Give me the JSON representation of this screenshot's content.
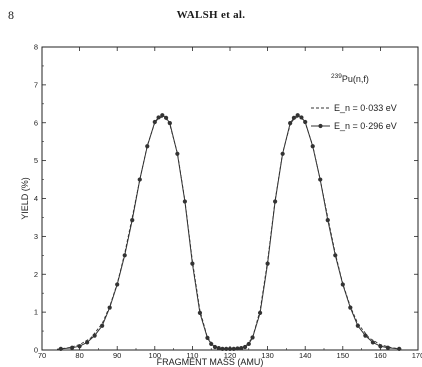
{
  "page": {
    "number": "8",
    "running_head": "WALSH et al."
  },
  "chart_data": {
    "type": "line",
    "title": "",
    "annotation": {
      "prefix": "239",
      "label": "Pu(n,f)"
    },
    "xlabel": "FRAGMENT MASS (AMU)",
    "ylabel": "YIELD (%)",
    "xlim": [
      70,
      170
    ],
    "ylim": [
      0,
      8
    ],
    "xticks": [
      70,
      80,
      90,
      100,
      110,
      120,
      130,
      140,
      150,
      160,
      170
    ],
    "yticks": [
      0,
      1,
      2,
      3,
      4,
      5,
      6,
      7,
      8
    ],
    "grid": false,
    "legend_position": "top-right",
    "series": [
      {
        "name": "E_n = 0·033 eV",
        "style": "dashed",
        "color": "#333333",
        "x": [
          74,
          77,
          80,
          83,
          86,
          88,
          90,
          92,
          94,
          96,
          98,
          100,
          101,
          102,
          103,
          104,
          106,
          108,
          110,
          112,
          114,
          116,
          118,
          120,
          122,
          124,
          126,
          128,
          130,
          132,
          134,
          136,
          137,
          138,
          139,
          140,
          142,
          144,
          146,
          148,
          150,
          152,
          154,
          157,
          160,
          163,
          166
        ],
        "y": [
          0.02,
          0.06,
          0.14,
          0.32,
          0.7,
          1.15,
          1.75,
          2.55,
          3.5,
          4.5,
          5.4,
          6.0,
          6.12,
          6.15,
          6.1,
          5.95,
          5.2,
          3.95,
          2.35,
          1.05,
          0.33,
          0.08,
          0.02,
          0.01,
          0.02,
          0.08,
          0.33,
          1.05,
          2.35,
          3.95,
          5.2,
          5.95,
          6.1,
          6.15,
          6.12,
          6.0,
          5.4,
          4.5,
          3.5,
          2.55,
          1.75,
          1.15,
          0.7,
          0.32,
          0.14,
          0.06,
          0.02
        ]
      },
      {
        "name": "E_n = 0·296 eV",
        "style": "solid-with-markers",
        "color": "#333333",
        "x": [
          75,
          78,
          80,
          82,
          84,
          86,
          88,
          90,
          92,
          94,
          96,
          98,
          100,
          101,
          102,
          103,
          104,
          106,
          108,
          110,
          112,
          114,
          115,
          116,
          117,
          118,
          119,
          120,
          121,
          122,
          123,
          124,
          125,
          126,
          128,
          130,
          132,
          134,
          136,
          137,
          138,
          139,
          140,
          142,
          144,
          146,
          148,
          150,
          152,
          154,
          156,
          158,
          160,
          162,
          165
        ],
        "y": [
          0.03,
          0.06,
          0.1,
          0.2,
          0.38,
          0.64,
          1.12,
          1.73,
          2.5,
          3.43,
          4.5,
          5.38,
          6.02,
          6.14,
          6.2,
          6.13,
          5.99,
          5.18,
          3.92,
          2.28,
          0.98,
          0.32,
          0.16,
          0.08,
          0.05,
          0.03,
          0.03,
          0.03,
          0.03,
          0.04,
          0.05,
          0.08,
          0.16,
          0.33,
          0.98,
          2.28,
          3.92,
          5.18,
          5.99,
          6.13,
          6.2,
          6.14,
          6.02,
          5.38,
          4.5,
          3.43,
          2.5,
          1.73,
          1.12,
          0.64,
          0.38,
          0.2,
          0.1,
          0.06,
          0.03
        ]
      }
    ]
  }
}
